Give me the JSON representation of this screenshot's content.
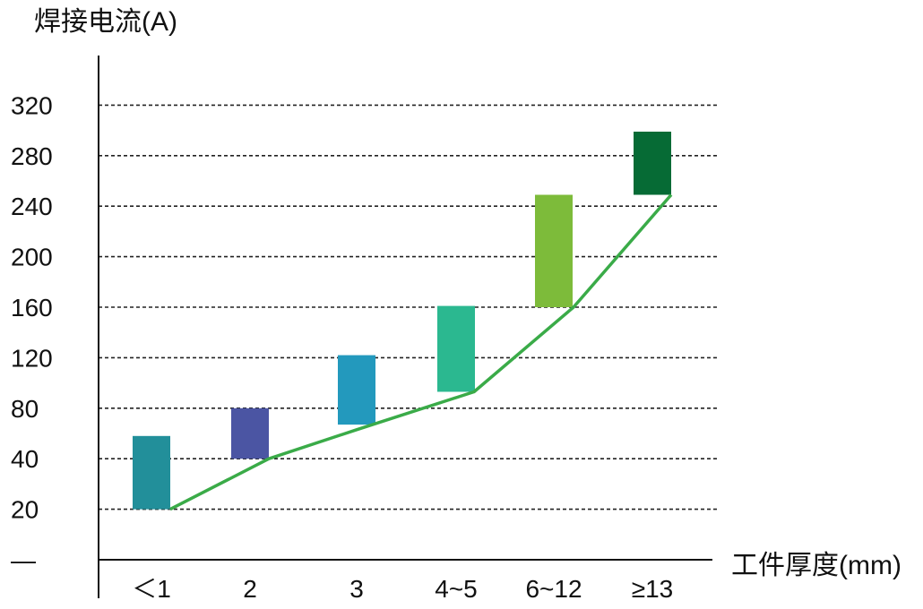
{
  "chart_data": {
    "type": "bar",
    "ylabel": "焊接电流(A)",
    "xlabel": "工件厚度(mm)",
    "yticks": [
      {
        "label": "—",
        "value": 0
      },
      {
        "label": "20",
        "value": 20
      },
      {
        "label": "40",
        "value": 40
      },
      {
        "label": "80",
        "value": 80
      },
      {
        "label": "120",
        "value": 120
      },
      {
        "label": "160",
        "value": 160
      },
      {
        "label": "200",
        "value": 200
      },
      {
        "label": "240",
        "value": 240
      },
      {
        "label": "280",
        "value": 280
      },
      {
        "label": "320",
        "value": 320
      }
    ],
    "categories": [
      "＜1",
      "2",
      "3",
      "4~5",
      "6~12",
      "≥13"
    ],
    "ranges": [
      {
        "low": 20,
        "high": 58,
        "color": "#228f9a"
      },
      {
        "low": 40,
        "high": 80,
        "color": "#4b55a3"
      },
      {
        "low": 67,
        "high": 122,
        "color": "#2399bd"
      },
      {
        "low": 93,
        "high": 161,
        "color": "#2bb890"
      },
      {
        "low": 160,
        "high": 249,
        "color": "#7dbb3a"
      },
      {
        "low": 249,
        "high": 299,
        "color": "#066b35"
      }
    ],
    "line": {
      "color": "#3aab48",
      "values": [
        20,
        40,
        63,
        93,
        160,
        249
      ]
    },
    "grid": "dashed"
  }
}
